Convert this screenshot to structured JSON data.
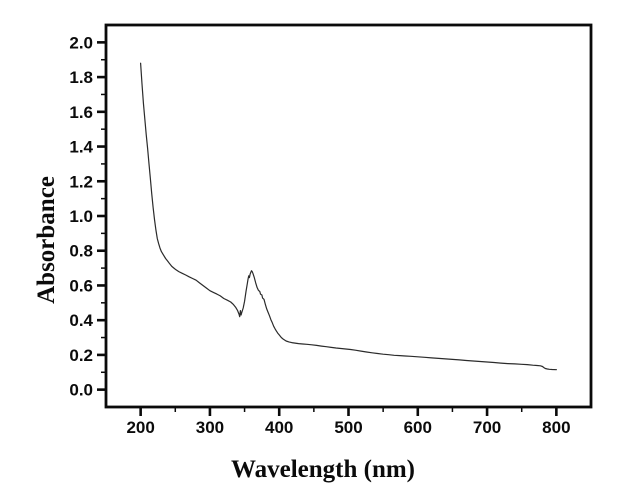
{
  "chart_data": {
    "type": "line",
    "title": "",
    "xlabel": "Wavelength (nm)",
    "ylabel": "Absorbance",
    "xlim": [
      150,
      850
    ],
    "ylim": [
      -0.1,
      2.1
    ],
    "grid": false,
    "legend": null,
    "frame_color": "#0a0a0a",
    "line_color": "#2b2b2b",
    "background_color": "#ffffff",
    "x_ticks": [
      "200",
      "300",
      "400",
      "500",
      "600",
      "700",
      "800"
    ],
    "y_ticks": [
      "0.0",
      "0.2",
      "0.4",
      "0.6",
      "0.8",
      "1.0",
      "1.2",
      "1.4",
      "1.6",
      "1.8",
      "2.0"
    ],
    "x_minor_ticks": [
      250,
      350,
      450,
      550,
      650,
      750
    ],
    "y_minor_ticks": [
      0.1,
      0.3,
      0.5,
      0.7,
      0.9,
      1.1,
      1.3,
      1.5,
      1.7,
      1.9
    ],
    "series": [
      {
        "name": "absorbance-spectrum",
        "x": [
          200,
          202,
          204,
          206,
          208,
          210,
          212,
          214,
          216,
          218,
          220,
          222,
          224,
          226,
          228,
          230,
          233,
          236,
          239,
          242,
          245,
          248,
          251,
          255,
          260,
          265,
          270,
          275,
          280,
          285,
          290,
          295,
          300,
          305,
          310,
          315,
          320,
          325,
          330,
          334,
          337,
          340,
          342,
          343,
          344,
          345,
          346,
          348,
          350,
          352,
          354,
          355,
          356,
          357,
          358,
          359,
          360,
          361,
          362,
          364,
          366,
          368,
          370,
          372,
          373,
          375,
          376,
          378,
          380,
          382,
          384,
          386,
          388,
          390,
          392,
          394,
          396,
          398,
          400,
          403,
          406,
          410,
          414,
          418,
          423,
          428,
          434,
          440,
          447,
          454,
          461,
          468,
          475,
          482,
          489,
          496,
          503,
          510,
          518,
          526,
          534,
          542,
          550,
          558,
          566,
          574,
          582,
          590,
          600,
          610,
          620,
          630,
          640,
          650,
          660,
          670,
          680,
          690,
          700,
          710,
          720,
          730,
          740,
          750,
          758,
          766,
          772,
          777,
          780,
          782,
          784,
          787,
          790,
          794,
          800
        ],
        "y": [
          1.88,
          1.76,
          1.65,
          1.56,
          1.47,
          1.39,
          1.3,
          1.22,
          1.13,
          1.05,
          0.98,
          0.92,
          0.87,
          0.84,
          0.815,
          0.795,
          0.775,
          0.755,
          0.74,
          0.725,
          0.71,
          0.7,
          0.69,
          0.68,
          0.67,
          0.66,
          0.65,
          0.64,
          0.63,
          0.615,
          0.6,
          0.585,
          0.57,
          0.56,
          0.55,
          0.54,
          0.525,
          0.515,
          0.505,
          0.49,
          0.475,
          0.455,
          0.435,
          0.42,
          0.455,
          0.43,
          0.445,
          0.47,
          0.51,
          0.565,
          0.61,
          0.635,
          0.655,
          0.645,
          0.665,
          0.675,
          0.685,
          0.68,
          0.67,
          0.645,
          0.615,
          0.59,
          0.572,
          0.565,
          0.55,
          0.545,
          0.527,
          0.52,
          0.49,
          0.465,
          0.445,
          0.425,
          0.403,
          0.385,
          0.365,
          0.35,
          0.337,
          0.325,
          0.315,
          0.3,
          0.29,
          0.28,
          0.275,
          0.271,
          0.268,
          0.265,
          0.263,
          0.261,
          0.258,
          0.255,
          0.251,
          0.247,
          0.243,
          0.24,
          0.237,
          0.234,
          0.231,
          0.227,
          0.222,
          0.217,
          0.212,
          0.208,
          0.204,
          0.201,
          0.198,
          0.196,
          0.194,
          0.192,
          0.189,
          0.186,
          0.183,
          0.18,
          0.177,
          0.174,
          0.171,
          0.168,
          0.165,
          0.162,
          0.159,
          0.156,
          0.153,
          0.15,
          0.148,
          0.146,
          0.144,
          0.141,
          0.139,
          0.137,
          0.133,
          0.127,
          0.122,
          0.119,
          0.117,
          0.116,
          0.115
        ]
      }
    ]
  }
}
